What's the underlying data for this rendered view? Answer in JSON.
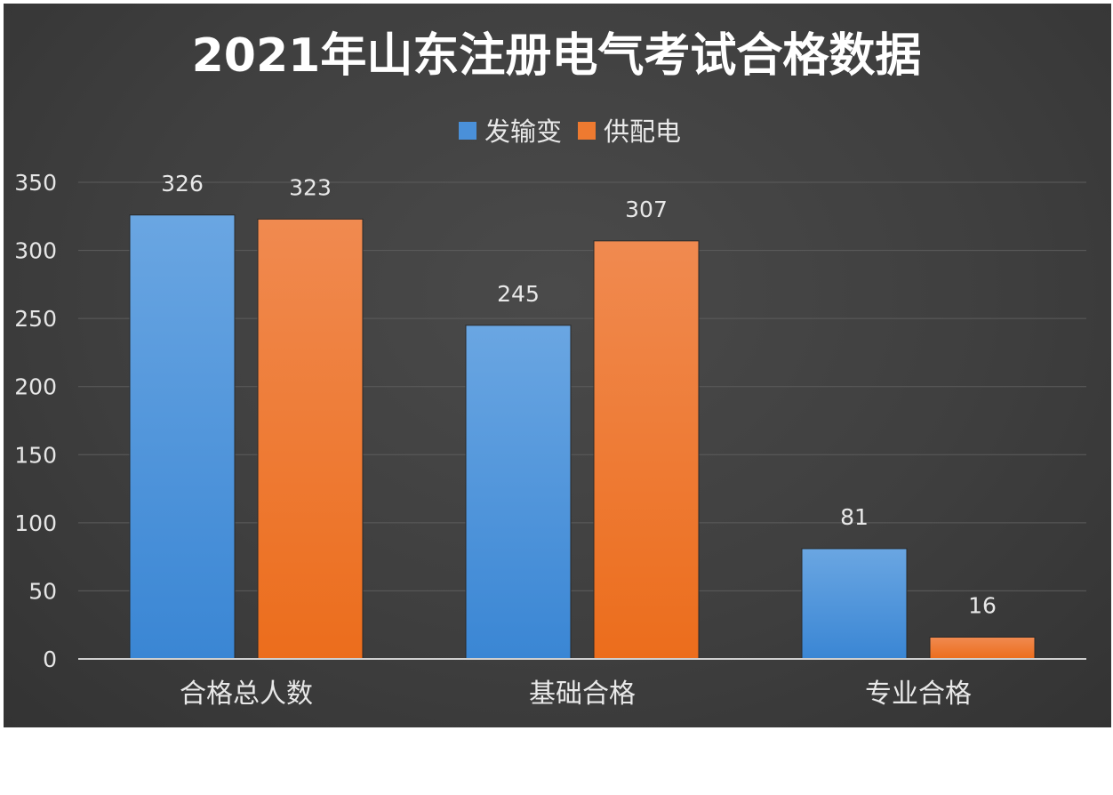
{
  "colors": {
    "series_1": "#4a90d9",
    "series_2": "#ee7a30",
    "background": "#3f3f3f"
  },
  "chart_data": {
    "type": "bar",
    "title": "2021年山东注册电气考试合格数据",
    "xlabel": "",
    "ylabel": "",
    "categories": [
      "合格总人数",
      "基础合格",
      "专业合格"
    ],
    "series": [
      {
        "name": "发输变",
        "values": [
          326,
          245,
          81
        ],
        "color": "#4a90d9"
      },
      {
        "name": "供配电",
        "values": [
          323,
          307,
          16
        ],
        "color": "#ee7a30"
      }
    ],
    "ylim": [
      0,
      350
    ],
    "yticks": [
      "0",
      "50",
      "100",
      "150",
      "200",
      "250",
      "300",
      "350"
    ],
    "grid": true,
    "legend_position": "top-center",
    "data_labels": true
  }
}
